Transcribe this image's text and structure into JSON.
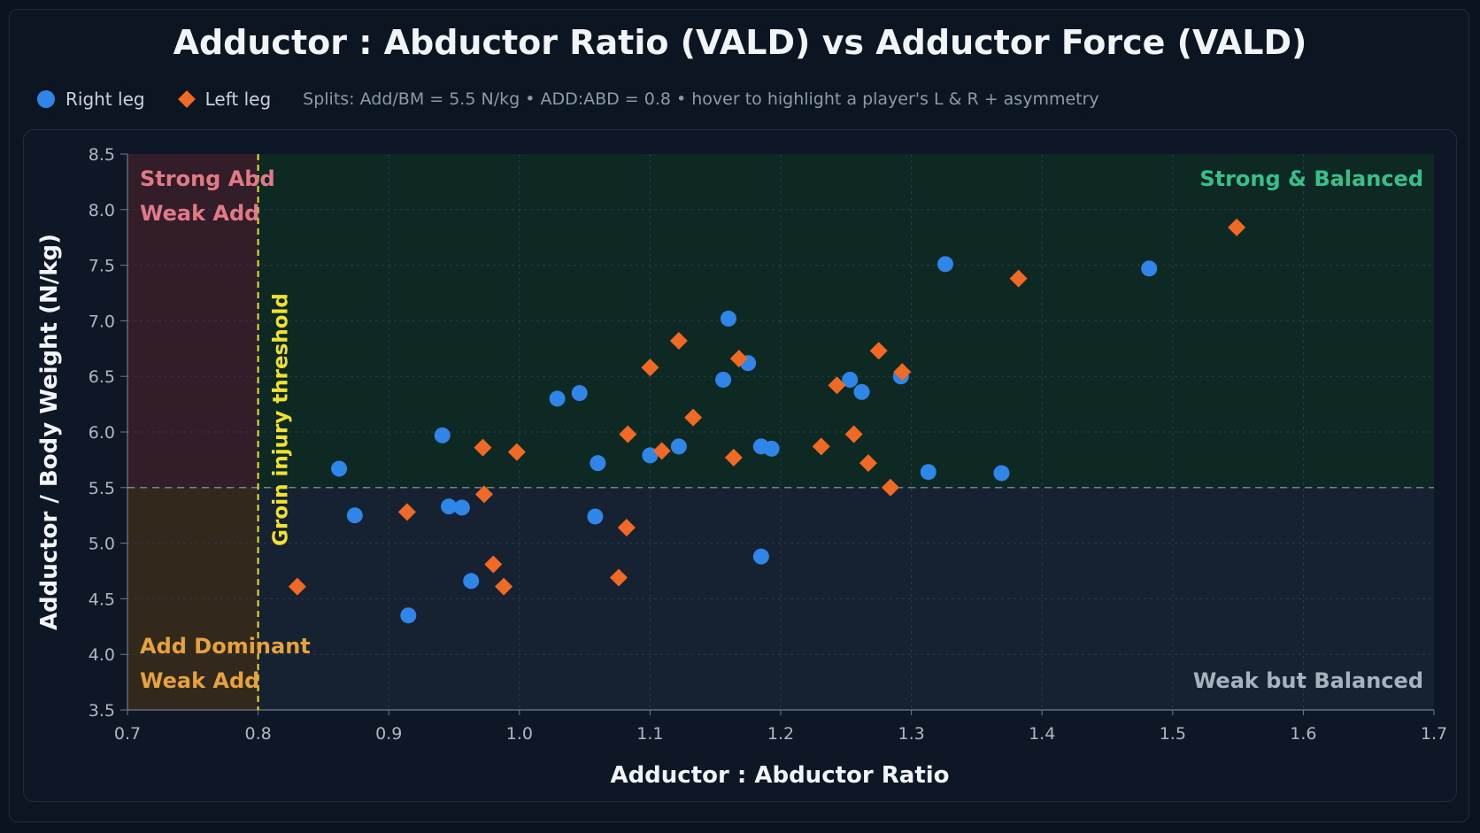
{
  "header": {
    "title": "Adductor : Abductor Ratio (VALD) vs Adductor Force (VALD)"
  },
  "legend": {
    "right_label": "Right leg",
    "left_label": "Left leg",
    "note": "Splits:  Add/BM = 5.5 N/kg  •  ADD:ABD = 0.8  •  hover to highlight a player's L & R + asymmetry"
  },
  "colors": {
    "right": "#2f86e8",
    "left": "#f06a25",
    "threshold": "#f0e130",
    "strong_abd": "#e07a86",
    "add_dominant": "#e6a23c",
    "strong_balanced": "#38c08c",
    "weak_balanced": "#a8b2be"
  },
  "chart_data": {
    "type": "scatter",
    "title": "Adductor : Abductor Ratio (VALD) vs Adductor Force (VALD)",
    "xlabel": "Adductor : Abductor Ratio",
    "ylabel": "Adductor / Body Weight (N/kg)",
    "xlim": [
      0.7,
      1.7
    ],
    "ylim": [
      3.5,
      8.5
    ],
    "xticks": [
      "0.7",
      "0.8",
      "0.9",
      "1.0",
      "1.1",
      "1.2",
      "1.3",
      "1.4",
      "1.5",
      "1.6",
      "1.7"
    ],
    "yticks": [
      "3.5",
      "4.0",
      "4.5",
      "5.0",
      "5.5",
      "6.0",
      "6.5",
      "7.0",
      "7.5",
      "8.0",
      "8.5"
    ],
    "grid": true,
    "legend_position": "top-left",
    "thresholds": {
      "x": 0.8,
      "x_label": "Groin injury threshold",
      "y": 5.5
    },
    "quadrant_labels": {
      "strong_abd": [
        "Strong Abd",
        "Weak Add"
      ],
      "add_dominant": [
        "Add Dominant",
        "Weak Add"
      ],
      "strong_balanced": "Strong & Balanced",
      "weak_balanced": "Weak but Balanced"
    },
    "series": [
      {
        "name": "Right leg",
        "marker": "circle",
        "points": [
          [
            0.862,
            5.67
          ],
          [
            0.874,
            5.25
          ],
          [
            0.915,
            4.35
          ],
          [
            0.941,
            5.97
          ],
          [
            0.946,
            5.33
          ],
          [
            0.956,
            5.32
          ],
          [
            0.963,
            4.66
          ],
          [
            1.029,
            6.3
          ],
          [
            1.046,
            6.35
          ],
          [
            1.058,
            5.24
          ],
          [
            1.06,
            5.72
          ],
          [
            1.1,
            5.79
          ],
          [
            1.122,
            5.87
          ],
          [
            1.156,
            6.47
          ],
          [
            1.16,
            7.02
          ],
          [
            1.175,
            6.62
          ],
          [
            1.185,
            5.87
          ],
          [
            1.193,
            5.85
          ],
          [
            1.185,
            4.88
          ],
          [
            1.253,
            6.47
          ],
          [
            1.262,
            6.36
          ],
          [
            1.292,
            6.5
          ],
          [
            1.313,
            5.64
          ],
          [
            1.326,
            7.51
          ],
          [
            1.369,
            5.63
          ],
          [
            1.482,
            7.47
          ]
        ]
      },
      {
        "name": "Left leg",
        "marker": "diamond",
        "points": [
          [
            0.83,
            4.61
          ],
          [
            0.914,
            5.28
          ],
          [
            0.972,
            5.86
          ],
          [
            0.973,
            5.44
          ],
          [
            0.98,
            4.81
          ],
          [
            0.988,
            4.61
          ],
          [
            0.998,
            5.82
          ],
          [
            1.076,
            4.69
          ],
          [
            1.082,
            5.14
          ],
          [
            1.083,
            5.98
          ],
          [
            1.1,
            6.58
          ],
          [
            1.109,
            5.83
          ],
          [
            1.122,
            6.82
          ],
          [
            1.133,
            6.13
          ],
          [
            1.164,
            5.77
          ],
          [
            1.168,
            6.66
          ],
          [
            1.231,
            5.87
          ],
          [
            1.243,
            6.42
          ],
          [
            1.256,
            5.98
          ],
          [
            1.267,
            5.72
          ],
          [
            1.275,
            6.73
          ],
          [
            1.284,
            5.5
          ],
          [
            1.293,
            6.54
          ],
          [
            1.382,
            7.38
          ],
          [
            1.549,
            7.84
          ]
        ]
      }
    ]
  }
}
